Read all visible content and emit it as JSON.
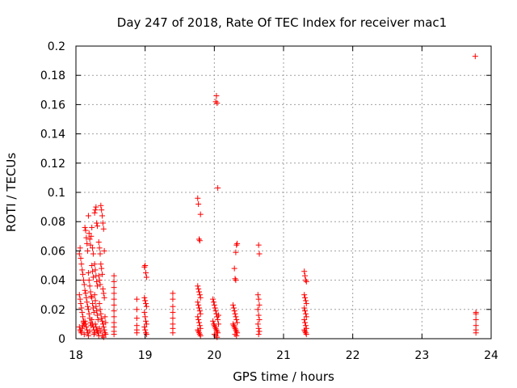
{
  "chart_data": {
    "type": "scatter",
    "title": "Day 247 of 2018, Rate Of TEC Index for receiver mac1",
    "xlabel": "GPS time / hours",
    "ylabel": "ROTI / TECUs",
    "xlim": [
      18,
      24
    ],
    "ylim": [
      0,
      0.2
    ],
    "grid": true,
    "marker": "+",
    "color": "#ff0000",
    "x_ticks": [
      "18",
      "19",
      "20",
      "21",
      "22",
      "23",
      "24"
    ],
    "y_ticks": [
      "0",
      "0.02",
      "0.04",
      "0.06",
      "0.08",
      "0.1",
      "0.12",
      "0.14",
      "0.16",
      "0.18",
      "0.2"
    ],
    "series": [
      {
        "name": "ROTI",
        "points": [
          [
            18.05,
            0.058
          ],
          [
            18.06,
            0.062
          ],
          [
            18.07,
            0.055
          ],
          [
            18.08,
            0.051
          ],
          [
            18.09,
            0.047
          ],
          [
            18.1,
            0.044
          ],
          [
            18.11,
            0.04
          ],
          [
            18.12,
            0.037
          ],
          [
            18.05,
            0.03
          ],
          [
            18.06,
            0.027
          ],
          [
            18.07,
            0.024
          ],
          [
            18.08,
            0.021
          ],
          [
            18.09,
            0.018
          ],
          [
            18.1,
            0.015
          ],
          [
            18.11,
            0.012
          ],
          [
            18.12,
            0.01
          ],
          [
            18.05,
            0.008
          ],
          [
            18.06,
            0.006
          ],
          [
            18.07,
            0.005
          ],
          [
            18.08,
            0.004
          ],
          [
            18.09,
            0.007
          ],
          [
            18.1,
            0.009
          ],
          [
            18.11,
            0.011
          ],
          [
            18.12,
            0.003
          ],
          [
            18.13,
            0.076
          ],
          [
            18.14,
            0.074
          ],
          [
            18.15,
            0.069
          ],
          [
            18.16,
            0.065
          ],
          [
            18.17,
            0.06
          ],
          [
            18.13,
            0.033
          ],
          [
            18.14,
            0.031
          ],
          [
            18.15,
            0.028
          ],
          [
            18.16,
            0.025
          ],
          [
            18.17,
            0.022
          ],
          [
            18.13,
            0.012
          ],
          [
            18.14,
            0.01
          ],
          [
            18.15,
            0.008
          ],
          [
            18.16,
            0.006
          ],
          [
            18.17,
            0.004
          ],
          [
            18.18,
            0.002
          ],
          [
            18.18,
            0.084
          ],
          [
            18.19,
            0.072
          ],
          [
            18.2,
            0.068
          ],
          [
            18.21,
            0.064
          ],
          [
            18.22,
            0.07
          ],
          [
            18.18,
            0.045
          ],
          [
            18.19,
            0.04
          ],
          [
            18.2,
            0.036
          ],
          [
            18.21,
            0.032
          ],
          [
            18.22,
            0.029
          ],
          [
            18.18,
            0.02
          ],
          [
            18.19,
            0.017
          ],
          [
            18.2,
            0.014
          ],
          [
            18.21,
            0.011
          ],
          [
            18.22,
            0.009
          ],
          [
            18.2,
            0.005
          ],
          [
            18.23,
            0.076
          ],
          [
            18.24,
            0.062
          ],
          [
            18.25,
            0.058
          ],
          [
            18.23,
            0.05
          ],
          [
            18.24,
            0.046
          ],
          [
            18.25,
            0.042
          ],
          [
            18.23,
            0.028
          ],
          [
            18.24,
            0.024
          ],
          [
            18.25,
            0.021
          ],
          [
            18.26,
            0.018
          ],
          [
            18.23,
            0.013
          ],
          [
            18.24,
            0.01
          ],
          [
            18.25,
            0.008
          ],
          [
            18.26,
            0.006
          ],
          [
            18.27,
            0.004
          ],
          [
            18.26,
            0.003
          ],
          [
            18.27,
            0.086
          ],
          [
            18.28,
            0.088
          ],
          [
            18.29,
            0.09
          ],
          [
            18.3,
            0.079
          ],
          [
            18.31,
            0.077
          ],
          [
            18.27,
            0.051
          ],
          [
            18.28,
            0.047
          ],
          [
            18.29,
            0.043
          ],
          [
            18.3,
            0.039
          ],
          [
            18.31,
            0.036
          ],
          [
            18.27,
            0.03
          ],
          [
            18.28,
            0.026
          ],
          [
            18.29,
            0.022
          ],
          [
            18.3,
            0.019
          ],
          [
            18.31,
            0.016
          ],
          [
            18.32,
            0.013
          ],
          [
            18.28,
            0.01
          ],
          [
            18.29,
            0.008
          ],
          [
            18.3,
            0.006
          ],
          [
            18.31,
            0.005
          ],
          [
            18.32,
            0.004
          ],
          [
            18.33,
            0.002
          ],
          [
            18.33,
            0.066
          ],
          [
            18.34,
            0.062
          ],
          [
            18.35,
            0.058
          ],
          [
            18.36,
            0.091
          ],
          [
            18.37,
            0.088
          ],
          [
            18.38,
            0.084
          ],
          [
            18.33,
            0.043
          ],
          [
            18.34,
            0.04
          ],
          [
            18.35,
            0.037
          ],
          [
            18.36,
            0.051
          ],
          [
            18.37,
            0.048
          ],
          [
            18.38,
            0.044
          ],
          [
            18.39,
            0.079
          ],
          [
            18.4,
            0.075
          ],
          [
            18.41,
            0.06
          ],
          [
            18.39,
            0.034
          ],
          [
            18.4,
            0.031
          ],
          [
            18.41,
            0.028
          ],
          [
            18.34,
            0.024
          ],
          [
            18.35,
            0.02
          ],
          [
            18.36,
            0.017
          ],
          [
            18.37,
            0.014
          ],
          [
            18.38,
            0.012
          ],
          [
            18.39,
            0.01
          ],
          [
            18.4,
            0.008
          ],
          [
            18.41,
            0.006
          ],
          [
            18.42,
            0.004
          ],
          [
            18.43,
            0.003
          ],
          [
            18.42,
            0.015
          ],
          [
            18.43,
            0.011
          ],
          [
            18.34,
            0.007
          ],
          [
            18.36,
            0.005
          ],
          [
            18.38,
            0.002
          ],
          [
            18.4,
            0.001
          ],
          [
            18.55,
            0.043
          ],
          [
            18.55,
            0.039
          ],
          [
            18.55,
            0.035
          ],
          [
            18.55,
            0.031
          ],
          [
            18.55,
            0.027
          ],
          [
            18.55,
            0.023
          ],
          [
            18.55,
            0.019
          ],
          [
            18.55,
            0.015
          ],
          [
            18.55,
            0.011
          ],
          [
            18.55,
            0.008
          ],
          [
            18.55,
            0.005
          ],
          [
            18.55,
            0.003
          ],
          [
            18.88,
            0.027
          ],
          [
            18.88,
            0.02
          ],
          [
            18.88,
            0.014
          ],
          [
            18.88,
            0.009
          ],
          [
            18.88,
            0.006
          ],
          [
            18.88,
            0.004
          ],
          [
            18.99,
            0.049
          ],
          [
            19.0,
            0.05
          ],
          [
            19.01,
            0.045
          ],
          [
            19.02,
            0.042
          ],
          [
            18.99,
            0.028
          ],
          [
            19.0,
            0.026
          ],
          [
            19.01,
            0.024
          ],
          [
            19.02,
            0.022
          ],
          [
            18.99,
            0.018
          ],
          [
            19.0,
            0.015
          ],
          [
            19.01,
            0.012
          ],
          [
            19.02,
            0.01
          ],
          [
            18.99,
            0.008
          ],
          [
            19.0,
            0.006
          ],
          [
            19.01,
            0.004
          ],
          [
            19.02,
            0.003
          ],
          [
            19.4,
            0.031
          ],
          [
            19.4,
            0.027
          ],
          [
            19.4,
            0.022
          ],
          [
            19.4,
            0.018
          ],
          [
            19.4,
            0.014
          ],
          [
            19.4,
            0.01
          ],
          [
            19.4,
            0.007
          ],
          [
            19.4,
            0.004
          ],
          [
            19.76,
            0.096
          ],
          [
            19.77,
            0.092
          ],
          [
            19.8,
            0.085
          ],
          [
            19.78,
            0.068
          ],
          [
            19.79,
            0.067
          ],
          [
            19.76,
            0.036
          ],
          [
            19.77,
            0.034
          ],
          [
            19.78,
            0.032
          ],
          [
            19.79,
            0.03
          ],
          [
            19.8,
            0.028
          ],
          [
            19.76,
            0.025
          ],
          [
            19.77,
            0.023
          ],
          [
            19.78,
            0.021
          ],
          [
            19.79,
            0.019
          ],
          [
            19.8,
            0.017
          ],
          [
            19.76,
            0.015
          ],
          [
            19.77,
            0.013
          ],
          [
            19.78,
            0.011
          ],
          [
            19.79,
            0.009
          ],
          [
            19.8,
            0.007
          ],
          [
            19.76,
            0.006
          ],
          [
            19.77,
            0.005
          ],
          [
            19.78,
            0.004
          ],
          [
            19.79,
            0.003
          ],
          [
            19.8,
            0.002
          ],
          [
            20.03,
            0.166
          ],
          [
            20.02,
            0.162
          ],
          [
            20.04,
            0.161
          ],
          [
            20.05,
            0.103
          ],
          [
            19.98,
            0.027
          ],
          [
            19.99,
            0.025
          ],
          [
            20.0,
            0.023
          ],
          [
            20.01,
            0.021
          ],
          [
            20.02,
            0.019
          ],
          [
            20.03,
            0.017
          ],
          [
            20.04,
            0.015
          ],
          [
            20.05,
            0.013
          ],
          [
            19.98,
            0.012
          ],
          [
            19.99,
            0.01
          ],
          [
            20.0,
            0.009
          ],
          [
            20.01,
            0.008
          ],
          [
            20.02,
            0.007
          ],
          [
            20.03,
            0.006
          ],
          [
            20.04,
            0.005
          ],
          [
            20.05,
            0.004
          ],
          [
            20.0,
            0.003
          ],
          [
            20.02,
            0.002
          ],
          [
            20.04,
            0.001
          ],
          [
            20.06,
            0.016
          ],
          [
            20.06,
            0.01
          ],
          [
            20.33,
            0.065
          ],
          [
            20.32,
            0.064
          ],
          [
            20.31,
            0.059
          ],
          [
            20.29,
            0.048
          ],
          [
            20.3,
            0.041
          ],
          [
            20.31,
            0.04
          ],
          [
            20.27,
            0.023
          ],
          [
            20.28,
            0.021
          ],
          [
            20.29,
            0.019
          ],
          [
            20.3,
            0.017
          ],
          [
            20.31,
            0.015
          ],
          [
            20.32,
            0.013
          ],
          [
            20.33,
            0.011
          ],
          [
            20.27,
            0.01
          ],
          [
            20.28,
            0.009
          ],
          [
            20.29,
            0.008
          ],
          [
            20.3,
            0.007
          ],
          [
            20.31,
            0.006
          ],
          [
            20.32,
            0.005
          ],
          [
            20.33,
            0.004
          ],
          [
            20.3,
            0.003
          ],
          [
            20.32,
            0.002
          ],
          [
            20.64,
            0.064
          ],
          [
            20.65,
            0.058
          ],
          [
            20.63,
            0.03
          ],
          [
            20.64,
            0.027
          ],
          [
            20.65,
            0.023
          ],
          [
            20.63,
            0.02
          ],
          [
            20.64,
            0.016
          ],
          [
            20.65,
            0.013
          ],
          [
            20.63,
            0.01
          ],
          [
            20.64,
            0.007
          ],
          [
            20.65,
            0.005
          ],
          [
            20.64,
            0.003
          ],
          [
            21.3,
            0.046
          ],
          [
            21.31,
            0.043
          ],
          [
            21.32,
            0.04
          ],
          [
            21.33,
            0.039
          ],
          [
            21.3,
            0.03
          ],
          [
            21.31,
            0.028
          ],
          [
            21.32,
            0.026
          ],
          [
            21.33,
            0.024
          ],
          [
            21.3,
            0.021
          ],
          [
            21.31,
            0.019
          ],
          [
            21.32,
            0.017
          ],
          [
            21.33,
            0.015
          ],
          [
            21.3,
            0.013
          ],
          [
            21.31,
            0.011
          ],
          [
            21.32,
            0.009
          ],
          [
            21.33,
            0.007
          ],
          [
            21.3,
            0.006
          ],
          [
            21.31,
            0.005
          ],
          [
            21.32,
            0.004
          ],
          [
            21.33,
            0.003
          ],
          [
            23.77,
            0.193
          ],
          [
            23.78,
            0.018
          ],
          [
            23.78,
            0.017
          ],
          [
            23.78,
            0.013
          ],
          [
            23.78,
            0.009
          ],
          [
            23.78,
            0.006
          ],
          [
            23.78,
            0.004
          ]
        ]
      }
    ]
  }
}
